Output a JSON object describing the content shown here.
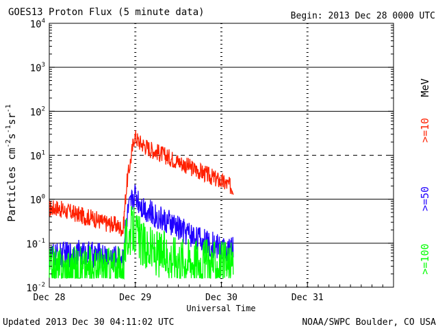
{
  "header": {
    "title": "GOES13 Proton Flux (5 minute data)",
    "begin": "Begin: 2013 Dec 28 0000 UTC"
  },
  "footer": {
    "updated": "Updated 2013 Dec 30 04:11:02 UTC",
    "credit": "NOAA/SWPC Boulder, CO USA"
  },
  "chart_data": {
    "type": "line",
    "title": "GOES13 Proton Flux (5 minute data)",
    "xlabel": "Universal Time",
    "ylabel": "Particles cm-2s-1sr-1",
    "y_scale": "log",
    "ylim": [
      0.01,
      10000
    ],
    "xlim": [
      0,
      96
    ],
    "x_unit": "hours since 2013 Dec 28 0000 UTC",
    "x_ticks": [
      {
        "x": 0,
        "label": "Dec 28"
      },
      {
        "x": 24,
        "label": "Dec 29"
      },
      {
        "x": 48,
        "label": "Dec 30"
      },
      {
        "x": 72,
        "label": "Dec 31"
      }
    ],
    "y_ticks": [
      {
        "value": 0.01,
        "base": "10",
        "exp": "-2"
      },
      {
        "value": 0.1,
        "base": "10",
        "exp": "-1"
      },
      {
        "value": 1,
        "base": "10",
        "exp": "0"
      },
      {
        "value": 10,
        "base": "10",
        "exp": "1"
      },
      {
        "value": 100,
        "base": "10",
        "exp": "2"
      },
      {
        "value": 1000,
        "base": "10",
        "exp": "3"
      },
      {
        "value": 10000,
        "base": "10",
        "exp": "4"
      }
    ],
    "solid_gridlines": [
      0.1,
      1,
      100,
      1000
    ],
    "dashed_gridlines": [
      10
    ],
    "right_label_unit": "MeV",
    "series": [
      {
        "name": ">=10",
        "color": "#ff2000",
        "x": [
          0,
          2,
          4,
          6,
          8,
          10,
          12,
          14,
          16,
          18,
          20,
          20.6,
          21.1,
          21.6,
          22.3,
          23,
          23.7,
          24,
          24.5,
          25,
          26,
          27,
          28,
          30,
          32,
          34,
          36,
          38,
          40,
          42,
          44,
          46,
          48,
          50,
          51.3
        ],
        "y": [
          0.6,
          0.65,
          0.55,
          0.5,
          0.45,
          0.4,
          0.38,
          0.32,
          0.28,
          0.27,
          0.22,
          0.2,
          0.75,
          2.2,
          5.0,
          11,
          27,
          26,
          23,
          20,
          18,
          16,
          14,
          12,
          10,
          8.5,
          7.2,
          6.0,
          5.0,
          4.3,
          3.6,
          3.0,
          2.5,
          2.1,
          1.8
        ]
      },
      {
        "name": ">=50",
        "color": "#2000ff",
        "x": [
          0,
          4,
          8,
          12,
          16,
          20,
          20.6,
          21.2,
          22,
          23,
          23.7,
          24.2,
          25,
          26,
          28,
          30,
          32,
          34,
          36,
          38,
          40,
          42,
          44,
          46,
          48,
          50,
          51.3
        ],
        "y": [
          0.05,
          0.055,
          0.06,
          0.055,
          0.05,
          0.045,
          0.05,
          0.2,
          0.5,
          0.9,
          1.3,
          1.2,
          0.9,
          0.7,
          0.5,
          0.4,
          0.33,
          0.27,
          0.22,
          0.18,
          0.15,
          0.12,
          0.1,
          0.09,
          0.08,
          0.07,
          0.07
        ]
      },
      {
        "name": ">=100",
        "color": "#00ff00",
        "x": [
          0,
          4,
          8,
          12,
          16,
          20,
          20.6,
          21.3,
          22,
          23,
          23.7,
          24.5,
          26,
          28,
          30,
          34,
          38,
          42,
          46,
          50,
          51.3
        ],
        "y": [
          0.025,
          0.025,
          0.025,
          0.025,
          0.025,
          0.025,
          0.03,
          0.1,
          0.15,
          0.2,
          0.2,
          0.15,
          0.09,
          0.07,
          0.06,
          0.05,
          0.045,
          0.04,
          0.035,
          0.03,
          0.03
        ]
      }
    ]
  }
}
